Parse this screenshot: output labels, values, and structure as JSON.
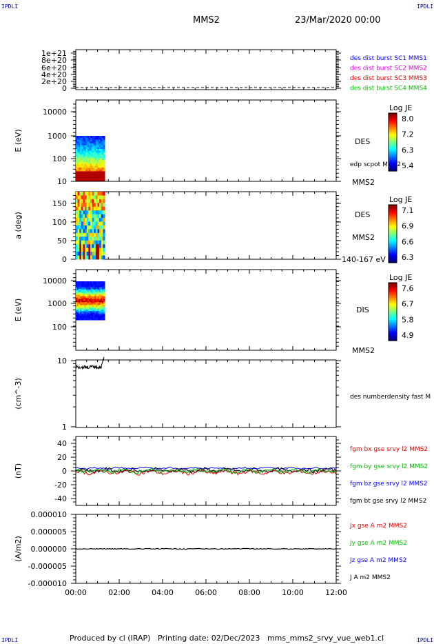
{
  "header": {
    "corner_tl": "IPDLI",
    "corner_tr": "IPDLI",
    "corner_bl": "IPDLI",
    "corner_br": "IPDLI",
    "title": "MMS2",
    "datetime": "23/Mar/2020 00:00"
  },
  "footer": {
    "text": "Produced by cl (IRAP)   Printing date: 02/Dec/2023   mms_mms2_srvy_vue_web1.cl"
  },
  "colors": {
    "blue": "#0000ff",
    "magenta": "#e000e0",
    "red": "#e00000",
    "green": "#00c000",
    "black": "#000000"
  },
  "time_axis": {
    "ticks": [
      "00:00",
      "02:00",
      "04:00",
      "06:00",
      "08:00",
      "10:00",
      "12:00"
    ],
    "range_hours": [
      0,
      12
    ]
  },
  "chart_data": [
    {
      "id": "p1",
      "type": "line",
      "ylabel": "",
      "yticks": [
        "1e+21",
        "8e+20",
        "6e+20",
        "4e+20",
        "2e+20",
        "0"
      ],
      "ylim": [
        0,
        1e+21
      ],
      "legend": [
        {
          "text": "des dist burst SC1 MMS1",
          "color": "#0000ff"
        },
        {
          "text": "des dist burst SC2 MMS2",
          "color": "#e000e0"
        },
        {
          "text": "des dist burst SC3 MMS3",
          "color": "#e00000"
        },
        {
          "text": "des dist burst SC4 MMS4",
          "color": "#00c000"
        }
      ],
      "series": [
        {
          "x": [
            0,
            12
          ],
          "y": [
            0,
            0
          ],
          "dashed": true
        }
      ]
    },
    {
      "id": "p2",
      "type": "heatmap",
      "ylabel": "E (eV)",
      "yscale": "log",
      "yticks": [
        "10000",
        "1000",
        "100",
        "10"
      ],
      "ylim": [
        10,
        15000
      ],
      "data_extent_hours": [
        0,
        1.3
      ],
      "data_extent_y": [
        10,
        1000
      ],
      "side_labels": [
        "DES",
        "edp scpot MMS2",
        "MMS2"
      ],
      "colorbar": {
        "title": "Log JE",
        "ticks": [
          "8.0",
          "7.2",
          "6.3",
          "5.4"
        ]
      }
    },
    {
      "id": "p3",
      "type": "heatmap",
      "ylabel": "a (deg)",
      "yticks": [
        "150",
        "100",
        "50",
        "0"
      ],
      "ylim": [
        0,
        180
      ],
      "data_extent_hours": [
        0,
        1.3
      ],
      "side_labels": [
        "DES",
        "MMS2",
        "140-167 eV"
      ],
      "colorbar": {
        "title": "Log JE",
        "ticks": [
          "7.1",
          "6.9",
          "6.6",
          "6.3"
        ]
      }
    },
    {
      "id": "p4",
      "type": "heatmap",
      "ylabel": "E (eV)",
      "yscale": "log",
      "yticks": [
        "10000",
        "1000",
        "100"
      ],
      "ylim": [
        30,
        15000
      ],
      "data_extent_hours": [
        0,
        1.3
      ],
      "data_extent_y": [
        200,
        10000
      ],
      "side_labels": [
        "DIS",
        "MMS2"
      ],
      "colorbar": {
        "title": "Log JE",
        "ticks": [
          "7.6",
          "6.7",
          "5.8",
          "4.9"
        ]
      }
    },
    {
      "id": "p5",
      "type": "line",
      "ylabel": "(cm^-3)",
      "yscale": "log",
      "yticks": [
        "10",
        "1"
      ],
      "ylim": [
        1,
        10
      ],
      "legend": [
        {
          "text": "des numberdensity fast M",
          "color": "#000000"
        }
      ],
      "series": [
        {
          "name": "des numberdensity fast M",
          "x_range_hours": [
            0,
            1.3
          ],
          "level": 8.0
        }
      ]
    },
    {
      "id": "p6",
      "type": "line",
      "ylabel": "(nT)",
      "yticks": [
        "40",
        "20",
        "0",
        "-20",
        "-40"
      ],
      "ylim": [
        -50,
        50
      ],
      "legend": [
        {
          "text": "fgm bx gse srvy l2 MMS2",
          "color": "#e00000"
        },
        {
          "text": "fgm by gse srvy l2 MMS2",
          "color": "#00c000"
        },
        {
          "text": "fgm bz gse srvy l2 MMS2",
          "color": "#0000ff"
        },
        {
          "text": "fgm bt gse srvy l2 MMS2",
          "color": "#000000"
        }
      ],
      "series": [
        {
          "name": "fgm bx gse srvy l2 MMS2",
          "level": 1
        },
        {
          "name": "fgm by gse srvy l2 MMS2",
          "level": -2
        },
        {
          "name": "fgm bz gse srvy l2 MMS2",
          "level": 0
        },
        {
          "name": "fgm bt gse srvy l2 MMS2",
          "level": 4
        }
      ]
    },
    {
      "id": "p7",
      "type": "line",
      "ylabel": "(A/m2)",
      "yticks": [
        "0.000010",
        "0.000005",
        "0.000000",
        "-0.000005",
        "-0.000010"
      ],
      "ylim": [
        -1e-05,
        1e-05
      ],
      "legend": [
        {
          "text": "Jx gse A m2 MMS2",
          "color": "#e00000"
        },
        {
          "text": "Jy gse A m2 MMS2",
          "color": "#00c000"
        },
        {
          "text": "Jz gse A m2 MMS2",
          "color": "#0000ff"
        },
        {
          "text": "J A m2 MMS2",
          "color": "#000000"
        }
      ],
      "series": [
        {
          "name": "J",
          "level": 0
        }
      ]
    }
  ]
}
